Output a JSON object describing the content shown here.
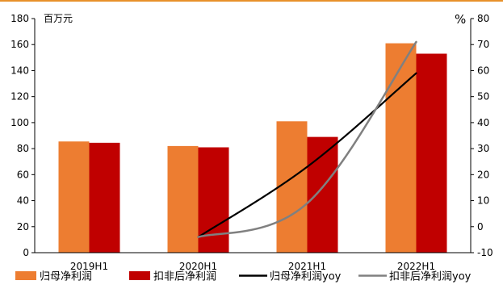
{
  "chart_data": {
    "type": "bar",
    "title": "",
    "categories": [
      "2019H1",
      "2020H1",
      "2021H1",
      "2022H1"
    ],
    "left_axis": {
      "unit_label": "百万元",
      "ylim": [
        0,
        180
      ],
      "step": 20
    },
    "right_axis": {
      "unit_label": "%",
      "ylim": [
        -10,
        80
      ],
      "step": 10
    },
    "series": [
      {
        "name": "归母净利润",
        "kind": "bar",
        "axis": "left",
        "color": "#ED7D31",
        "values": [
          85.5,
          82,
          101,
          161
        ]
      },
      {
        "name": "扣非后净利润",
        "kind": "bar",
        "axis": "left",
        "color": "#C00000",
        "values": [
          84.5,
          81,
          89,
          153
        ]
      },
      {
        "name": "归母净利润yoy",
        "kind": "line",
        "axis": "right",
        "color": "#000000",
        "values": [
          null,
          -4,
          23,
          59
        ]
      },
      {
        "name": "扣非后净利润yoy",
        "kind": "line",
        "axis": "right",
        "color": "#808080",
        "values": [
          null,
          -4,
          9,
          71
        ]
      }
    ],
    "grid": false,
    "legend_position": "bottom"
  }
}
